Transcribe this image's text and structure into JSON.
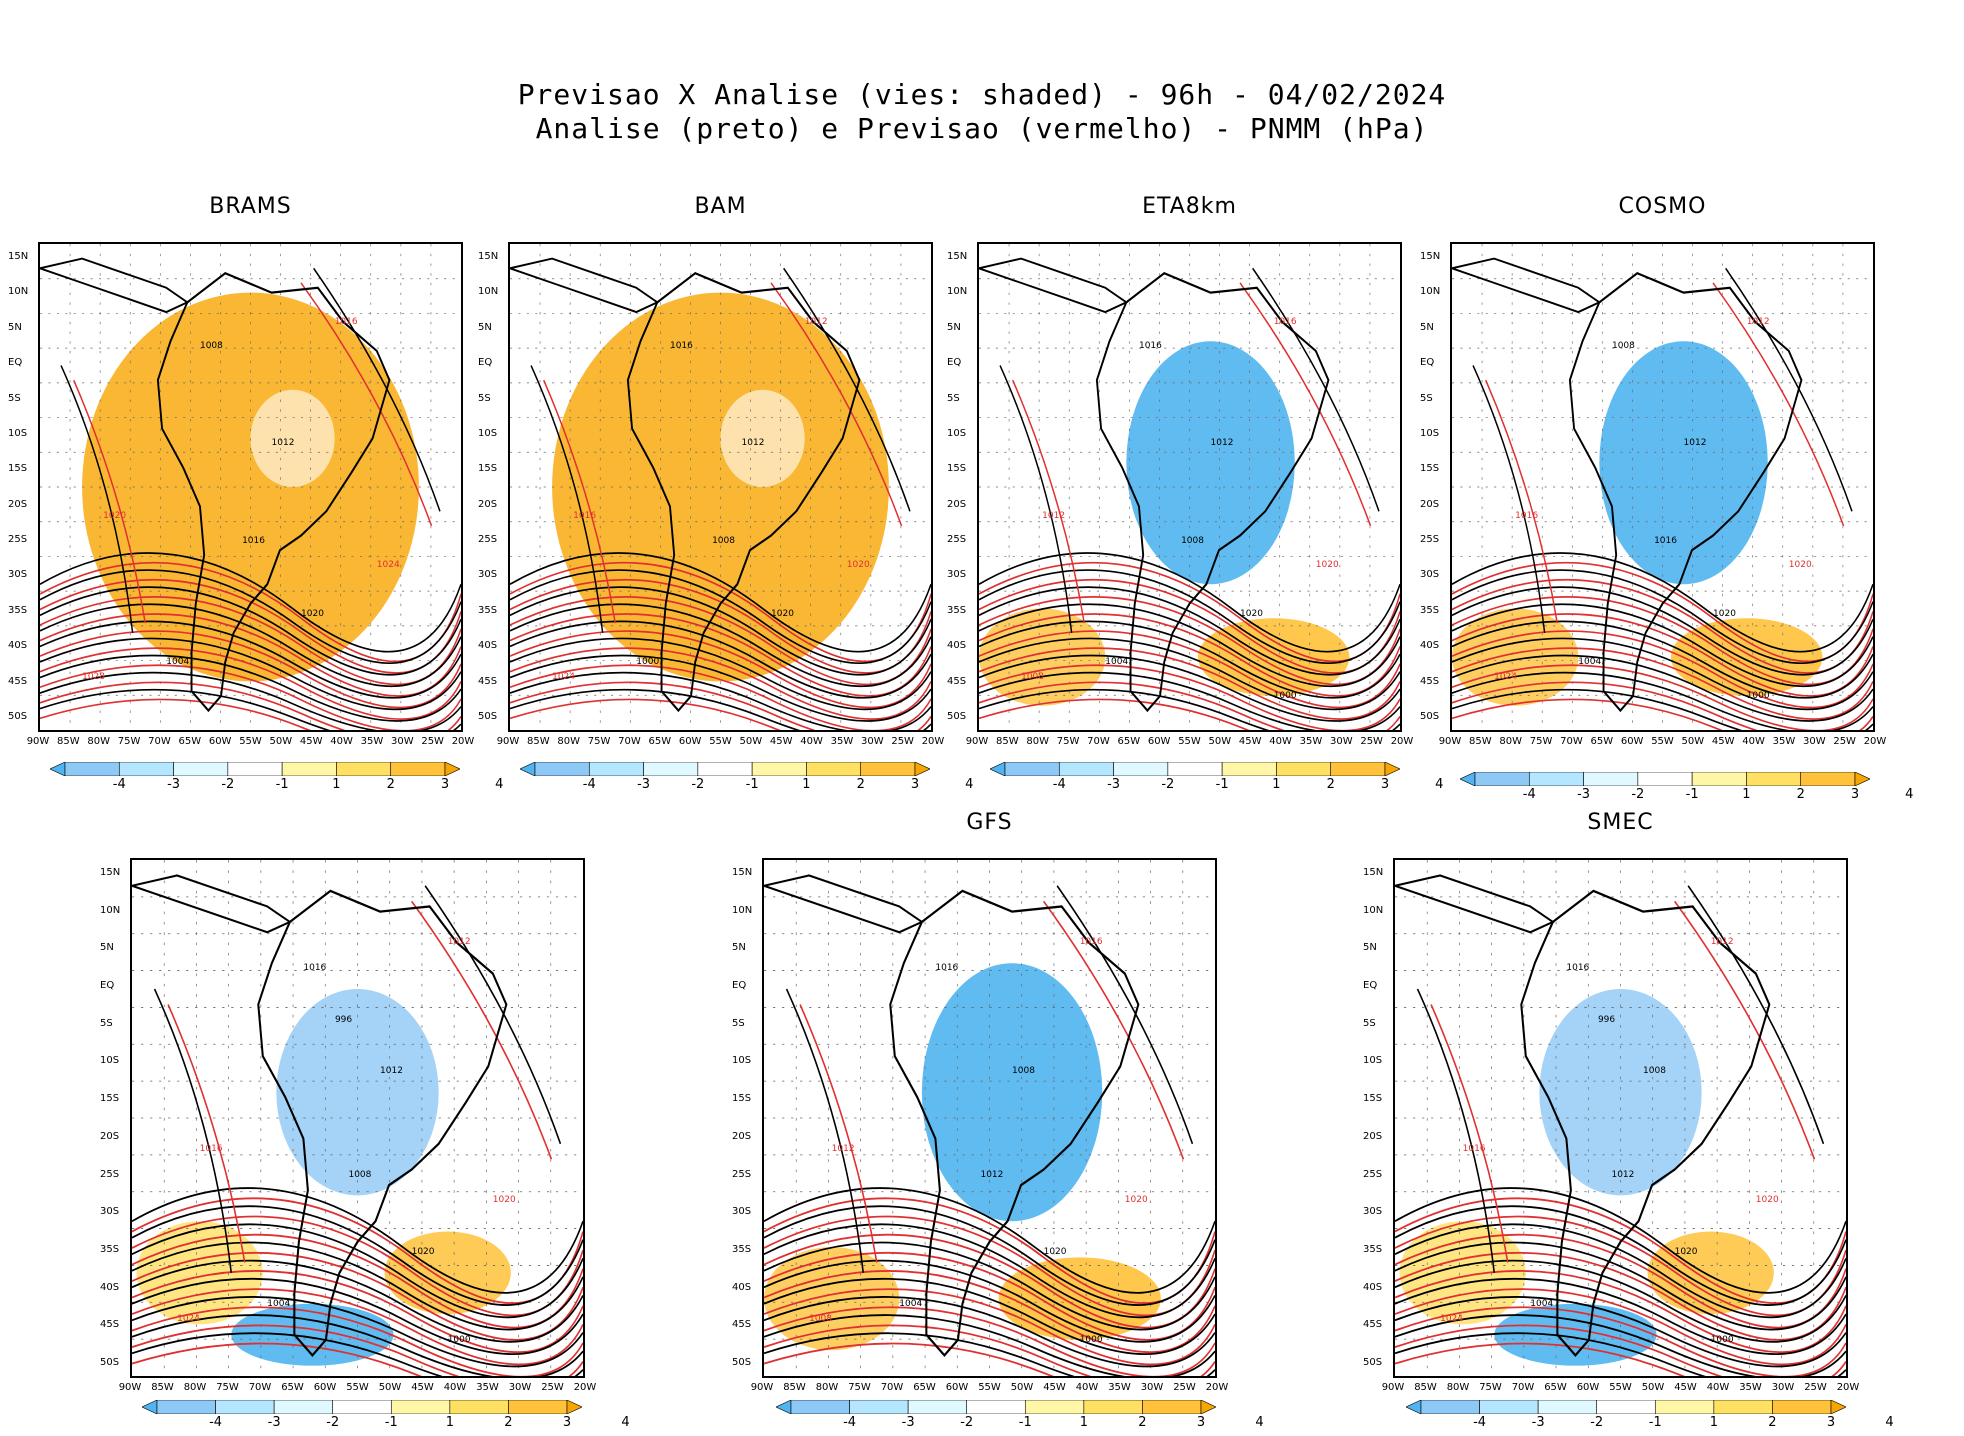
{
  "title": {
    "line1": "Previsao X Analise (vies: shaded) - 96h - 04/02/2024",
    "line2": "Analise (preto) e Previsao (vermelho) - PNMM (hPa)"
  },
  "axes": {
    "lat_labels": [
      "15N",
      "10N",
      "5N",
      "EQ",
      "5S",
      "10S",
      "15S",
      "20S",
      "25S",
      "30S",
      "35S",
      "40S",
      "45S",
      "50S"
    ],
    "lon_labels": [
      "90W",
      "85W",
      "80W",
      "75W",
      "70W",
      "65W",
      "60W",
      "55W",
      "50W",
      "45W",
      "40W",
      "35W",
      "30W",
      "25W",
      "20W"
    ]
  },
  "colorbar": {
    "labels": [
      "-4",
      "-3",
      "-2",
      "-1",
      "1",
      "2",
      "3",
      "4"
    ],
    "colors": [
      "#4fb4f0",
      "#8ec8f5",
      "#b4e6ff",
      "#e0f8ff",
      "#ffffff",
      "#fff6a8",
      "#ffe063",
      "#ffc23a",
      "#f7a500"
    ]
  },
  "colors": {
    "analysis_contour": "#000000",
    "forecast_contour": "#e03030",
    "warm_bias": "#f6a800",
    "cold_bias": "#52b0f0"
  },
  "panels": [
    {
      "id": "brams",
      "title": "BRAMS",
      "bias": "warm",
      "labels_black": [
        "1008",
        "1012",
        "1016",
        "1020",
        "1004"
      ],
      "labels_red": [
        "1016",
        "1020",
        "1024",
        "1028"
      ]
    },
    {
      "id": "bam",
      "title": "BAM",
      "bias": "warm",
      "labels_black": [
        "1016",
        "1012",
        "1008",
        "1020",
        "1000"
      ],
      "labels_red": [
        "1012",
        "1016",
        "1020",
        "1024"
      ]
    },
    {
      "id": "eta8km",
      "title": "ETA8km",
      "bias": "cold",
      "labels_black": [
        "1016",
        "1012",
        "1008",
        "1020",
        "1004",
        "1000"
      ],
      "labels_red": [
        "1016",
        "1012",
        "1020",
        "1008"
      ]
    },
    {
      "id": "cosmo",
      "title": "COSMO",
      "bias": "cold",
      "labels_black": [
        "1008",
        "1012",
        "1016",
        "1020",
        "1004",
        "1000"
      ],
      "labels_red": [
        "1012",
        "1016",
        "1020",
        "1024"
      ]
    },
    {
      "id": "unnamed",
      "title": "",
      "bias": "mixed",
      "labels_black": [
        "1016",
        "1012",
        "1008",
        "1020",
        "1004",
        "1000",
        "996"
      ],
      "labels_red": [
        "1012",
        "1016",
        "1020",
        "1024"
      ]
    },
    {
      "id": "gfs",
      "title": "GFS",
      "bias": "cold",
      "labels_black": [
        "1016",
        "1008",
        "1012",
        "1020",
        "1004",
        "1000"
      ],
      "labels_red": [
        "1016",
        "1012",
        "1020",
        "1008"
      ]
    },
    {
      "id": "smec",
      "title": "SMEC",
      "bias": "mixed",
      "labels_black": [
        "1016",
        "1008",
        "1012",
        "1020",
        "1004",
        "1000",
        "996"
      ],
      "labels_red": [
        "1012",
        "1016",
        "1020",
        "1024"
      ]
    }
  ]
}
